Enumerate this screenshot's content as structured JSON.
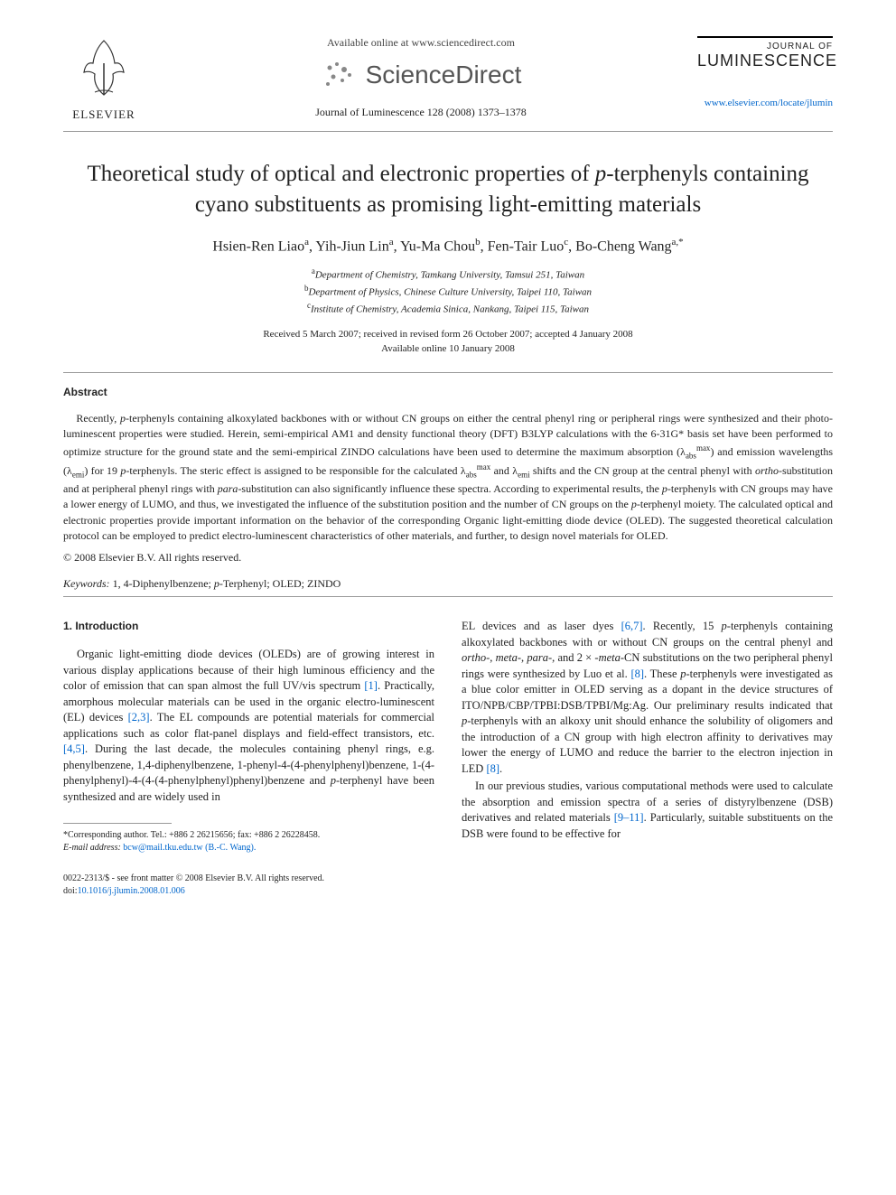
{
  "header": {
    "elsevier": "ELSEVIER",
    "available_online": "Available online at www.sciencedirect.com",
    "sciencedirect": "ScienceDirect",
    "journal_ref": "Journal of Luminescence 128 (2008) 1373–1378",
    "journal_of": "JOURNAL OF",
    "journal_name": "LUMINESCENCE",
    "journal_url": "www.elsevier.com/locate/jlumin"
  },
  "title_line1": "Theoretical study of optical and electronic properties of ",
  "title_ital": "p",
  "title_line2": "-terphenyls containing cyano substituents as promising light-emitting materials",
  "authors_html": "Hsien-Ren Liao<sup>a</sup>, Yih-Jiun Lin<sup>a</sup>, Yu-Ma Chou<sup>b</sup>, Fen-Tair Luo<sup>c</sup>, Bo-Cheng Wang<sup>a,*</sup>",
  "affiliations": {
    "a": "Department of Chemistry, Tamkang University, Tamsui 251, Taiwan",
    "b": "Department of Physics, Chinese Culture University, Taipei 110, Taiwan",
    "c": "Institute of Chemistry, Academia Sinica, Nankang, Taipei 115, Taiwan"
  },
  "dates_line1": "Received 5 March 2007; received in revised form 26 October 2007; accepted 4 January 2008",
  "dates_line2": "Available online 10 January 2008",
  "abstract_label": "Abstract",
  "abstract_body": "Recently, <span class=\"ital\">p</span>-terphenyls containing alkoxylated backbones with or without CN groups on either the central phenyl ring or peripheral rings were synthesized and their photo-luminescent properties were studied. Herein, semi-empirical AM1 and density functional theory (DFT) B3LYP calculations with the 6-31G* basis set have been performed to optimize structure for the ground state and the semi-empirical ZINDO calculations have been used to determine the maximum absorption (λ<sub>abs</sub><sup>max</sup>) and emission wavelengths (λ<sub>emi</sub>) for 19 <span class=\"ital\">p</span>-terphenyls. The steric effect is assigned to be responsible for the calculated λ<sub>abs</sub><sup>max</sup> and λ<sub>emi</sub> shifts and the CN group at the central phenyl with <span class=\"ital\">ortho</span>-substitution and at peripheral phenyl rings with <span class=\"ital\">para</span>-substitution can also significantly influence these spectra. According to experimental results, the <span class=\"ital\">p</span>-terphenyls with CN groups may have a lower energy of LUMO, and thus, we investigated the influence of the substitution position and the number of CN groups on the <span class=\"ital\">p</span>-terphenyl moiety. The calculated optical and electronic properties provide important information on the behavior of the corresponding Organic light-emitting diode device (OLED). The suggested theoretical calculation protocol can be employed to predict electro-luminescent characteristics of other materials, and further, to design novel materials for OLED.",
  "copyright": "© 2008 Elsevier B.V. All rights reserved.",
  "keywords_label": "Keywords:",
  "keywords_text": " 1, 4-Diphenylbenzene; <span class=\"ital\">p</span>-Terphenyl; OLED; ZINDO",
  "section1_head": "1. Introduction",
  "intro_col1": "Organic light-emitting diode devices (OLEDs) are of growing interest in various display applications because of their high luminous efficiency and the color of emission that can span almost the full UV/vis spectrum <a class=\"ref\" href=\"#\">[1]</a>. Practically, amorphous molecular materials can be used in the organic electro-luminescent (EL) devices <a class=\"ref\" href=\"#\">[2,3]</a>. The EL compounds are potential materials for commercial applications such as color flat-panel displays and field-effect transistors, etc. <a class=\"ref\" href=\"#\">[4,5]</a>. During the last decade, the molecules containing phenyl rings, e.g. phenylbenzene, 1,4-diphenylbenzene, 1-phenyl-4-(4-phenylphenyl)benzene, 1-(4-phenylphenyl)-4-(4-(4-phenylphenyl)phenyl)benzene and <span class=\"ital\">p</span>-terphenyl have been synthesized and are widely used in",
  "intro_col2_p1": "EL devices and as laser dyes <a class=\"ref\" href=\"#\">[6,7]</a>. Recently, 15 <span class=\"ital\">p</span>-terphenyls containing alkoxylated backbones with or without CN groups on the central phenyl and <span class=\"ital\">ortho-</span>, <span class=\"ital\">meta-</span>, <span class=\"ital\">para-</span>, and 2 × -<span class=\"ital\">meta</span>-CN substitutions on the two peripheral phenyl rings were synthesized by Luo et al. <a class=\"ref\" href=\"#\">[8]</a>. These <span class=\"ital\">p</span>-terphenyls were investigated as a blue color emitter in OLED serving as a dopant in the device structures of ITO/NPB/CBP/TPBI:DSB/TPBI/Mg:Ag. Our preliminary results indicated that <span class=\"ital\">p</span>-terphenyls with an alkoxy unit should enhance the solubility of oligomers and the introduction of a CN group with high electron affinity to derivatives may lower the energy of LUMO and reduce the barrier to the electron injection in LED <a class=\"ref\" href=\"#\">[8]</a>.",
  "intro_col2_p2": "In our previous studies, various computational methods were used to calculate the absorption and emission spectra of a series of distyrylbenzene (DSB) derivatives and related materials <a class=\"ref\" href=\"#\">[9–11]</a>. Particularly, suitable substituents on the DSB were found to be effective for",
  "footnote_corr": "*Corresponding author. Tel.: +886 2 26215656; fax: +886 2 26228458.",
  "footnote_email_label": "E-mail address:",
  "footnote_email": "bcw@mail.tku.edu.tw (B.-C. Wang).",
  "footer_issn": "0022-2313/$ - see front matter © 2008 Elsevier B.V. All rights reserved.",
  "footer_doi_label": "doi:",
  "footer_doi": "10.1016/j.jlumin.2008.01.006",
  "colors": {
    "link": "#0066cc",
    "text": "#222222",
    "rule": "#999999",
    "bg": "#ffffff"
  },
  "typography": {
    "body_font": "Georgia, Times New Roman, serif",
    "title_fontsize": 25,
    "author_fontsize": 16,
    "abstract_fontsize": 12,
    "body_fontsize": 12.5,
    "footnote_fontsize": 10
  }
}
